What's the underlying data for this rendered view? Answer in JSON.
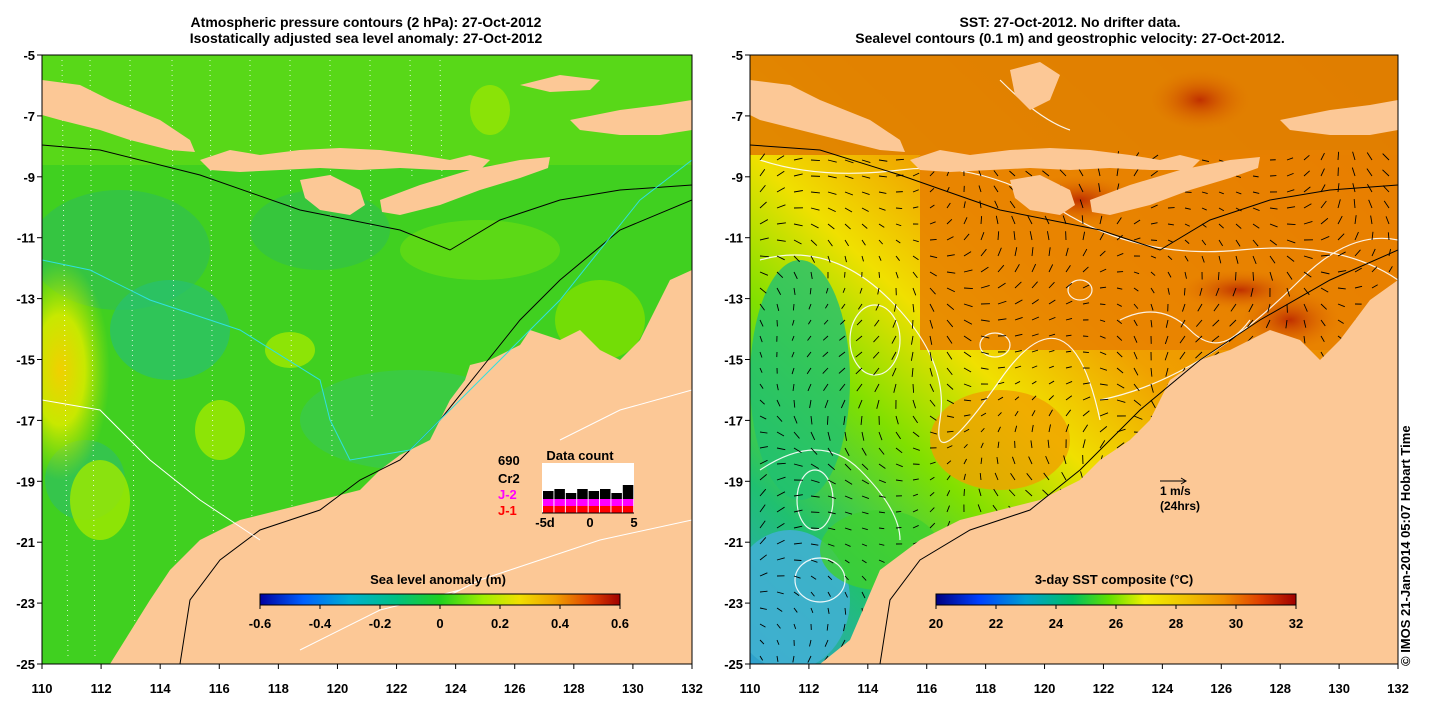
{
  "left_panel": {
    "title_line1": "Atmospheric pressure contours (2 hPa): 27-Oct-2012",
    "title_line2": "Isostatically adjusted sea level anomaly: 27-Oct-2012",
    "colorbar_label": "Sea level anomaly (m)",
    "colorbar_ticks": [
      "-0.6",
      "-0.4",
      "-0.2",
      "0",
      "0.2",
      "0.4",
      "0.6"
    ],
    "data_count": {
      "title": "Data count",
      "satellites": [
        {
          "name": "690",
          "color": "#000000"
        },
        {
          "name": "Cr2",
          "color": "#000000"
        },
        {
          "name": "J-2",
          "color": "#ff00ff"
        },
        {
          "name": "J-1",
          "color": "#ff0000"
        }
      ],
      "axis_labels": [
        "-5d",
        "0",
        "5"
      ]
    }
  },
  "right_panel": {
    "title_line1": "SST: 27-Oct-2012. No drifter data.",
    "title_line2": "Sealevel contours (0.1 m) and geostrophic velocity: 27-Oct-2012.",
    "colorbar_label": "3-day SST composite (°C)",
    "colorbar_ticks": [
      "20",
      "22",
      "24",
      "26",
      "28",
      "30",
      "32"
    ],
    "velocity_key_line1": "1 m/s",
    "velocity_key_line2": "(24hrs)"
  },
  "axes": {
    "x_ticks": [
      "110",
      "112",
      "114",
      "116",
      "118",
      "120",
      "122",
      "124",
      "126",
      "128",
      "130",
      "132"
    ],
    "y_ticks": [
      "-5",
      "-7",
      "-9",
      "-11",
      "-13",
      "-15",
      "-17",
      "-19",
      "-21",
      "-23",
      "-25"
    ]
  },
  "credit": "© IMOS 21-Jan-2014 05:07 Hobart Time",
  "colors": {
    "land": "#fcc896",
    "ssh_ramp": [
      "#0000c0",
      "#0080ff",
      "#00c080",
      "#10c040",
      "#40e020",
      "#a0f000",
      "#f0e000",
      "#f09000",
      "#e03000",
      "#a00000"
    ],
    "sst_ramp": [
      "#000090",
      "#0040ff",
      "#00a0c0",
      "#00c060",
      "#40e000",
      "#f0f000",
      "#f0c000",
      "#f08000",
      "#e04000",
      "#a00000"
    ]
  }
}
